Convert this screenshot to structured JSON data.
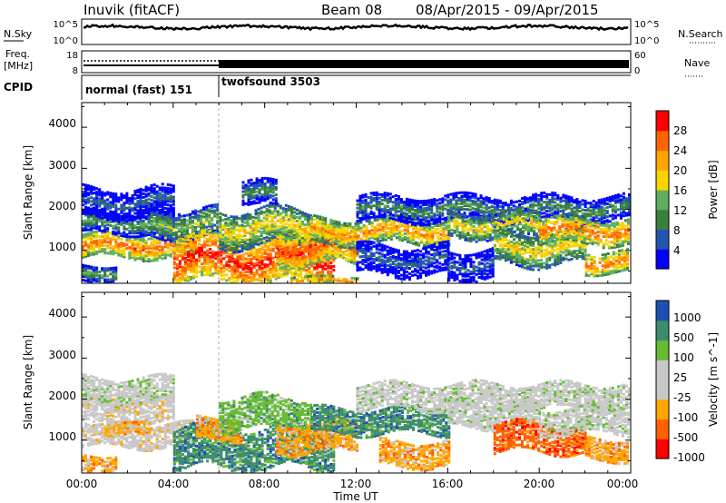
{
  "header": {
    "station": "Inuvik (fitACF)",
    "beam": "Beam 08",
    "date_range": "08/Apr/2015 - 09/Apr/2015"
  },
  "status_panels": {
    "nsky": {
      "label": "N.Sky",
      "ytick_top": "10^5",
      "ytick_bottom": "10^0",
      "right_tick_top": "10^5",
      "right_tick_bottom": "10^0",
      "right_label": "N.Search"
    },
    "freq": {
      "label_line1": "Freq.",
      "label_line2": "[MHz]",
      "ytick_top": "18",
      "ytick_bottom": "8",
      "right_tick_top": "60",
      "right_tick_bottom": "0",
      "right_label": "Nave"
    },
    "cpid": {
      "label": "CPID",
      "segments": [
        {
          "name": "normal (fast) 151",
          "start_hour": 0,
          "end_hour": 6
        },
        {
          "name": "twofsound 3503",
          "start_hour": 6,
          "end_hour": 24
        }
      ]
    }
  },
  "colors": {
    "power_scale": [
      "#0000ff",
      "#2255b0",
      "#3b7f3f",
      "#5fae5f",
      "#f6d400",
      "#ffa500",
      "#ff6400",
      "#ff0000"
    ],
    "velocity_scale": [
      "#ff0000",
      "#ff6000",
      "#ffa500",
      "#c8c8c8",
      "#c8c8c8",
      "#66bb33",
      "#3c8c6e",
      "#1e50b4"
    ]
  },
  "chart_data": [
    {
      "type": "heatmap",
      "title": "",
      "xlabel": "",
      "ylabel": "Slant Range [km]",
      "xlim": [
        0,
        24
      ],
      "ylim": [
        200,
        4600
      ],
      "yticks": [
        "4000",
        "3000",
        "2000",
        "1000"
      ],
      "colorbar_label": "Power [dB]",
      "colorbar_ticks": [
        "28",
        "24",
        "20",
        "16",
        "12",
        "8",
        "4"
      ],
      "colorbar_range": [
        0,
        32
      ],
      "bands": [
        {
          "start": 0,
          "end": 5,
          "center": 1150,
          "width": 280,
          "value": 26
        },
        {
          "start": 0,
          "end": 4,
          "center": 1700,
          "width": 250,
          "value": 14
        },
        {
          "start": 0,
          "end": 4,
          "center": 2200,
          "width": 350,
          "value": 8
        },
        {
          "start": 0,
          "end": 1.5,
          "center": 500,
          "width": 200,
          "value": 14
        },
        {
          "start": 3,
          "end": 6,
          "center": 1700,
          "width": 350,
          "value": 16
        },
        {
          "start": 4,
          "end": 11,
          "center": 800,
          "width": 550,
          "value": 30
        },
        {
          "start": 6,
          "end": 10,
          "center": 1600,
          "width": 450,
          "value": 20
        },
        {
          "start": 7,
          "end": 8.5,
          "center": 2400,
          "width": 300,
          "value": 12
        },
        {
          "start": 8.5,
          "end": 12,
          "center": 1100,
          "width": 400,
          "value": 28
        },
        {
          "start": 9,
          "end": 12,
          "center": 300,
          "width": 100,
          "value": 24
        },
        {
          "start": 10,
          "end": 16,
          "center": 1500,
          "width": 300,
          "value": 24
        },
        {
          "start": 12,
          "end": 24,
          "center": 2050,
          "width": 300,
          "value": 12
        },
        {
          "start": 12,
          "end": 16,
          "center": 800,
          "width": 350,
          "value": 8
        },
        {
          "start": 16,
          "end": 20,
          "center": 1650,
          "width": 300,
          "value": 20
        },
        {
          "start": 16,
          "end": 18,
          "center": 700,
          "width": 350,
          "value": 8
        },
        {
          "start": 18,
          "end": 22,
          "center": 1100,
          "width": 400,
          "value": 20
        },
        {
          "start": 20,
          "end": 24,
          "center": 1500,
          "width": 300,
          "value": 26
        },
        {
          "start": 22,
          "end": 24,
          "center": 750,
          "width": 250,
          "value": 26
        }
      ]
    },
    {
      "type": "heatmap",
      "title": "",
      "xlabel": "Time UT",
      "ylabel": "Slant Range [km]",
      "xlim": [
        0,
        24
      ],
      "ylim": [
        200,
        4600
      ],
      "xticks": [
        "00:00",
        "04:00",
        "08:00",
        "12:00",
        "16:00",
        "20:00",
        "00:00"
      ],
      "yticks": [
        "4000",
        "3000",
        "2000",
        "1000"
      ],
      "colorbar_label": "Velocity [m s^-1]",
      "colorbar_ticks": [
        "1000",
        "500",
        "100",
        "25",
        "-25",
        "-100",
        "-500",
        "-1000"
      ],
      "bands": [
        {
          "start": 0,
          "end": 5,
          "center": 1150,
          "width": 280,
          "value": 3
        },
        {
          "start": 0,
          "end": 4,
          "center": 1750,
          "width": 300,
          "value": 3
        },
        {
          "start": 0,
          "end": 4,
          "center": 2250,
          "width": 300,
          "value": 4
        },
        {
          "start": 0,
          "end": 1.5,
          "center": 500,
          "width": 200,
          "value": 2
        },
        {
          "start": 1,
          "end": 3,
          "center": 1300,
          "width": 150,
          "value": 2
        },
        {
          "start": 4,
          "end": 11,
          "center": 850,
          "width": 500,
          "value": 6
        },
        {
          "start": 5,
          "end": 7,
          "center": 1300,
          "width": 250,
          "value": 2
        },
        {
          "start": 6,
          "end": 10,
          "center": 1700,
          "width": 400,
          "value": 5
        },
        {
          "start": 8.5,
          "end": 12,
          "center": 1100,
          "width": 350,
          "value": 2
        },
        {
          "start": 10,
          "end": 16,
          "center": 1500,
          "width": 300,
          "value": 6
        },
        {
          "start": 12,
          "end": 24,
          "center": 2100,
          "width": 300,
          "value": 4
        },
        {
          "start": 13,
          "end": 16,
          "center": 700,
          "width": 300,
          "value": 2
        },
        {
          "start": 16,
          "end": 20,
          "center": 1650,
          "width": 300,
          "value": 4
        },
        {
          "start": 18,
          "end": 22,
          "center": 1100,
          "width": 350,
          "value": 1
        },
        {
          "start": 20,
          "end": 24,
          "center": 1500,
          "width": 300,
          "value": 4
        },
        {
          "start": 22,
          "end": 24,
          "center": 800,
          "width": 250,
          "value": 2
        }
      ]
    }
  ]
}
